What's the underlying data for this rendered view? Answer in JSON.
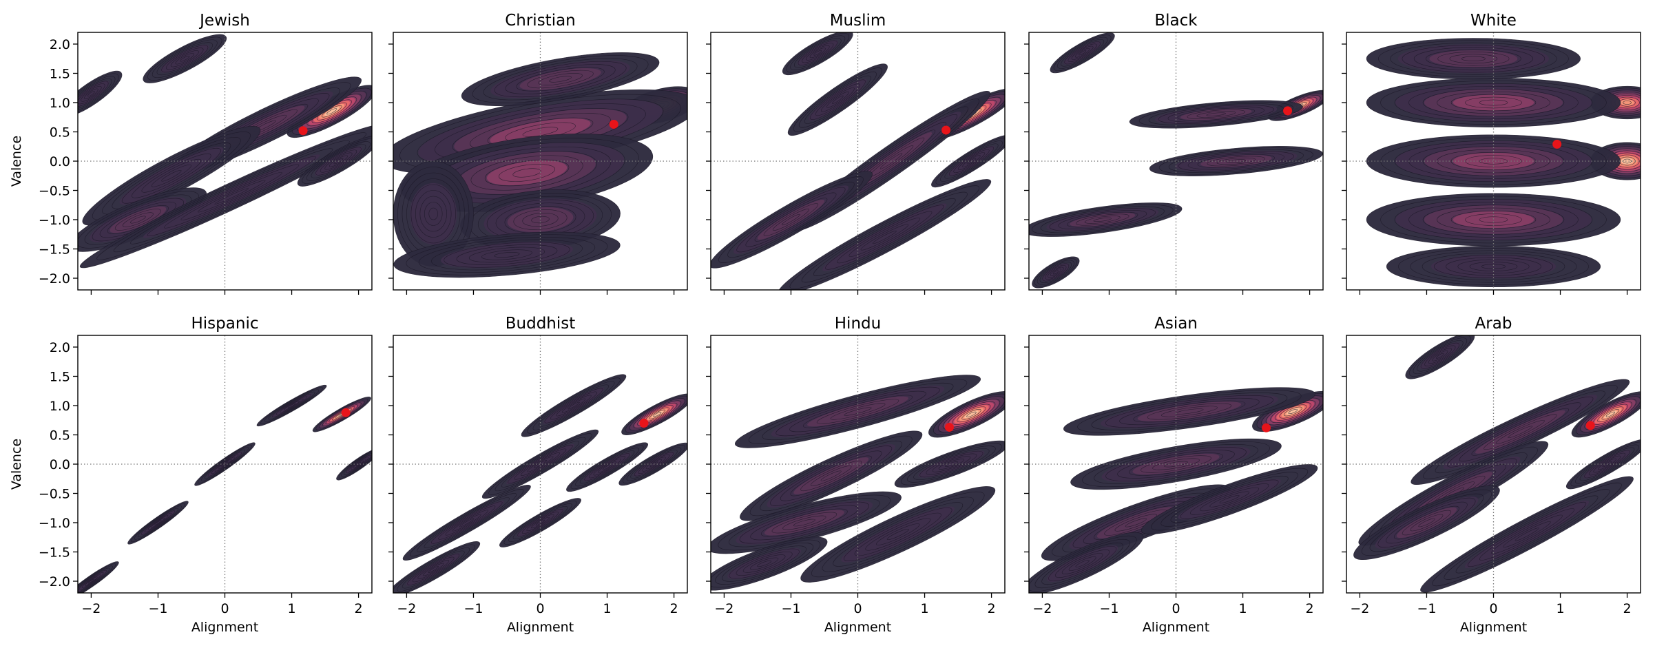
{
  "figure": {
    "ylabel": "Valence",
    "xlabel": "Alignment"
  },
  "chart_data": {
    "type": "kde-contour-grid",
    "rows": 2,
    "cols": 5,
    "xlim": [
      -2.2,
      2.2
    ],
    "ylim": [
      -2.2,
      2.2
    ],
    "xticks": [
      -2,
      -1,
      0,
      1,
      2
    ],
    "yticks": [
      -2.0,
      -1.5,
      -1.0,
      -0.5,
      0.0,
      0.5,
      1.0,
      1.5,
      2.0
    ],
    "ytick_labels": [
      "−2.0",
      "−1.5",
      "−1.0",
      "−0.5",
      "0.0",
      "0.5",
      "1.0",
      "1.5",
      "2.0"
    ],
    "xtick_labels": [
      "−2",
      "−1",
      "0",
      "1",
      "2"
    ],
    "reference_lines": {
      "x": 0,
      "y": 0,
      "style": "dotted"
    },
    "colors": {
      "levels": [
        "#2d2a3e",
        "#3e2f4b",
        "#5a3557",
        "#8b3e66",
        "#c2486b",
        "#ea6a6a",
        "#f5997a",
        "#fbc3a0"
      ],
      "contour_line": "#1a1726",
      "mean_marker": "#e8141a",
      "ref_line": "#777777"
    },
    "grid": false,
    "panels": [
      {
        "title": "Jewish",
        "mean": [
          1.17,
          0.52
        ],
        "peak": [
          2.0,
          1.0
        ],
        "blobs": [
          {
            "x": 1.6,
            "y": 0.85,
            "a": 0.75,
            "b": 0.22,
            "r": 28,
            "w": 1.0
          },
          {
            "x": 0.6,
            "y": 0.6,
            "a": 1.6,
            "b": 0.28,
            "r": 26,
            "w": 0.35
          },
          {
            "x": -0.8,
            "y": -0.25,
            "a": 1.5,
            "b": 0.3,
            "r": 28,
            "w": 0.3
          },
          {
            "x": -1.3,
            "y": -1.0,
            "a": 1.1,
            "b": 0.3,
            "r": 22,
            "w": 0.35
          },
          {
            "x": 0.1,
            "y": -0.6,
            "a": 2.5,
            "b": 0.22,
            "r": 25,
            "w": 0.28
          },
          {
            "x": -0.6,
            "y": 1.75,
            "a": 0.7,
            "b": 0.2,
            "r": 28,
            "w": 0.3
          },
          {
            "x": -2.0,
            "y": 1.15,
            "a": 0.55,
            "b": 0.18,
            "r": 35,
            "w": 0.3
          },
          {
            "x": 1.7,
            "y": 0.0,
            "a": 0.7,
            "b": 0.18,
            "r": 30,
            "w": 0.25
          }
        ]
      },
      {
        "title": "Christian",
        "mean": [
          1.1,
          0.63
        ],
        "peak": [
          2.05,
          1.0
        ],
        "blobs": [
          {
            "x": 1.8,
            "y": 0.95,
            "a": 0.6,
            "b": 0.28,
            "r": 15,
            "w": 1.0
          },
          {
            "x": 0.0,
            "y": 0.5,
            "a": 2.4,
            "b": 0.55,
            "r": 10,
            "w": 0.45
          },
          {
            "x": -0.2,
            "y": -0.2,
            "a": 1.9,
            "b": 0.6,
            "r": 8,
            "w": 0.45
          },
          {
            "x": 0.0,
            "y": -1.0,
            "a": 1.2,
            "b": 0.5,
            "r": 5,
            "w": 0.35
          },
          {
            "x": -1.6,
            "y": -0.9,
            "a": 0.6,
            "b": 0.9,
            "r": 0,
            "w": 0.3
          },
          {
            "x": 0.3,
            "y": 1.4,
            "a": 1.5,
            "b": 0.35,
            "r": 10,
            "w": 0.35
          },
          {
            "x": -0.5,
            "y": -1.6,
            "a": 1.7,
            "b": 0.35,
            "r": 5,
            "w": 0.3
          }
        ]
      },
      {
        "title": "Muslim",
        "mean": [
          1.32,
          0.53
        ],
        "peak": [
          2.0,
          1.0
        ],
        "blobs": [
          {
            "x": 1.7,
            "y": 0.8,
            "a": 0.75,
            "b": 0.2,
            "r": 28,
            "w": 1.0
          },
          {
            "x": 0.5,
            "y": 0.0,
            "a": 1.8,
            "b": 0.25,
            "r": 35,
            "w": 0.32
          },
          {
            "x": -1.0,
            "y": -1.0,
            "a": 1.4,
            "b": 0.25,
            "r": 30,
            "w": 0.35
          },
          {
            "x": -0.3,
            "y": 1.05,
            "a": 0.9,
            "b": 0.2,
            "r": 35,
            "w": 0.3
          },
          {
            "x": -0.6,
            "y": 1.85,
            "a": 0.6,
            "b": 0.18,
            "r": 30,
            "w": 0.3
          },
          {
            "x": 0.4,
            "y": -1.3,
            "a": 1.8,
            "b": 0.25,
            "r": 28,
            "w": 0.3
          },
          {
            "x": 1.7,
            "y": 0.0,
            "a": 0.7,
            "b": 0.16,
            "r": 32,
            "w": 0.25
          }
        ]
      },
      {
        "title": "Black",
        "mean": [
          1.67,
          0.86
        ],
        "peak": [
          2.0,
          1.0
        ],
        "blobs": [
          {
            "x": 1.85,
            "y": 0.95,
            "a": 0.5,
            "b": 0.16,
            "r": 22,
            "w": 1.0
          },
          {
            "x": 0.6,
            "y": 0.8,
            "a": 1.3,
            "b": 0.2,
            "r": 5,
            "w": 0.35
          },
          {
            "x": 0.9,
            "y": 0.0,
            "a": 1.3,
            "b": 0.22,
            "r": 5,
            "w": 0.35
          },
          {
            "x": -1.1,
            "y": -1.0,
            "a": 1.2,
            "b": 0.22,
            "r": 8,
            "w": 0.35
          },
          {
            "x": -1.4,
            "y": 1.85,
            "a": 0.55,
            "b": 0.16,
            "r": 30,
            "w": 0.3
          },
          {
            "x": -1.8,
            "y": -1.9,
            "a": 0.4,
            "b": 0.16,
            "r": 30,
            "w": 0.3
          }
        ]
      },
      {
        "title": "White",
        "mean": [
          0.95,
          0.29
        ],
        "peak": [
          1.95,
          0.0
        ],
        "blobs": [
          {
            "x": 2.0,
            "y": 1.0,
            "a": 0.55,
            "b": 0.28,
            "r": 0,
            "w": 0.9
          },
          {
            "x": 2.0,
            "y": 0.0,
            "a": 0.55,
            "b": 0.32,
            "r": 0,
            "w": 1.0
          },
          {
            "x": 0.0,
            "y": 1.0,
            "a": 1.9,
            "b": 0.42,
            "r": 0,
            "w": 0.5
          },
          {
            "x": 0.0,
            "y": 0.0,
            "a": 1.9,
            "b": 0.45,
            "r": 0,
            "w": 0.5
          },
          {
            "x": 0.0,
            "y": -1.0,
            "a": 1.9,
            "b": 0.45,
            "r": 0,
            "w": 0.55
          },
          {
            "x": -0.3,
            "y": 1.75,
            "a": 1.6,
            "b": 0.35,
            "r": 0,
            "w": 0.35
          },
          {
            "x": 0.0,
            "y": -1.8,
            "a": 1.6,
            "b": 0.35,
            "r": 0,
            "w": 0.3
          }
        ]
      },
      {
        "title": "Hispanic",
        "mean": [
          1.81,
          0.88
        ],
        "peak": [
          2.0,
          1.0
        ],
        "blobs": [
          {
            "x": 1.75,
            "y": 0.85,
            "a": 0.5,
            "b": 0.1,
            "r": 30,
            "w": 1.0
          },
          {
            "x": 1.0,
            "y": 1.0,
            "a": 0.6,
            "b": 0.09,
            "r": 30,
            "w": 0.3
          },
          {
            "x": 0.0,
            "y": 0.0,
            "a": 0.55,
            "b": 0.09,
            "r": 35,
            "w": 0.3
          },
          {
            "x": -1.0,
            "y": -1.0,
            "a": 0.55,
            "b": 0.09,
            "r": 35,
            "w": 0.3
          },
          {
            "x": -2.0,
            "y": -2.0,
            "a": 0.5,
            "b": 0.09,
            "r": 35,
            "w": 0.3
          },
          {
            "x": 2.0,
            "y": 0.0,
            "a": 0.4,
            "b": 0.09,
            "r": 35,
            "w": 0.25
          }
        ]
      },
      {
        "title": "Buddhist",
        "mean": [
          1.55,
          0.7
        ],
        "peak": [
          2.0,
          1.0
        ],
        "blobs": [
          {
            "x": 1.75,
            "y": 0.85,
            "a": 0.6,
            "b": 0.16,
            "r": 28,
            "w": 1.0
          },
          {
            "x": 0.5,
            "y": 1.0,
            "a": 0.9,
            "b": 0.16,
            "r": 30,
            "w": 0.3
          },
          {
            "x": 0.0,
            "y": 0.0,
            "a": 1.0,
            "b": 0.16,
            "r": 30,
            "w": 0.3
          },
          {
            "x": -1.1,
            "y": -1.0,
            "a": 1.1,
            "b": 0.16,
            "r": 30,
            "w": 0.3
          },
          {
            "x": -1.6,
            "y": -1.8,
            "a": 0.8,
            "b": 0.16,
            "r": 30,
            "w": 0.3
          },
          {
            "x": 0.0,
            "y": -1.0,
            "a": 0.7,
            "b": 0.14,
            "r": 30,
            "w": 0.3
          },
          {
            "x": 1.0,
            "y": -0.05,
            "a": 0.7,
            "b": 0.14,
            "r": 30,
            "w": 0.3
          },
          {
            "x": 1.7,
            "y": 0.0,
            "a": 0.6,
            "b": 0.14,
            "r": 30,
            "w": 0.25
          }
        ]
      },
      {
        "title": "Hindu",
        "mean": [
          1.37,
          0.63
        ],
        "peak": [
          2.0,
          1.0
        ],
        "blobs": [
          {
            "x": 1.7,
            "y": 0.85,
            "a": 0.7,
            "b": 0.22,
            "r": 25,
            "w": 1.0
          },
          {
            "x": 0.0,
            "y": 0.9,
            "a": 1.9,
            "b": 0.28,
            "r": 15,
            "w": 0.35
          },
          {
            "x": -0.4,
            "y": -0.2,
            "a": 1.5,
            "b": 0.28,
            "r": 25,
            "w": 0.35
          },
          {
            "x": -0.8,
            "y": -1.0,
            "a": 1.5,
            "b": 0.3,
            "r": 15,
            "w": 0.35
          },
          {
            "x": 0.6,
            "y": -1.2,
            "a": 1.6,
            "b": 0.3,
            "r": 25,
            "w": 0.3
          },
          {
            "x": 1.4,
            "y": 0.0,
            "a": 0.9,
            "b": 0.2,
            "r": 20,
            "w": 0.3
          },
          {
            "x": -1.4,
            "y": -1.7,
            "a": 1.0,
            "b": 0.25,
            "r": 20,
            "w": 0.3
          }
        ]
      },
      {
        "title": "Asian",
        "mean": [
          1.35,
          0.62
        ],
        "peak": [
          2.0,
          1.0
        ],
        "blobs": [
          {
            "x": 1.75,
            "y": 0.9,
            "a": 0.65,
            "b": 0.22,
            "r": 22,
            "w": 1.0
          },
          {
            "x": 0.2,
            "y": 0.9,
            "a": 1.9,
            "b": 0.28,
            "r": 8,
            "w": 0.35
          },
          {
            "x": 0.0,
            "y": 0.0,
            "a": 1.6,
            "b": 0.3,
            "r": 10,
            "w": 0.4
          },
          {
            "x": -0.6,
            "y": -1.0,
            "a": 1.5,
            "b": 0.3,
            "r": 20,
            "w": 0.35
          },
          {
            "x": 0.8,
            "y": -0.6,
            "a": 1.4,
            "b": 0.25,
            "r": 20,
            "w": 0.3
          },
          {
            "x": -1.4,
            "y": -1.7,
            "a": 1.0,
            "b": 0.25,
            "r": 25,
            "w": 0.3
          }
        ]
      },
      {
        "title": "Arab",
        "mean": [
          1.45,
          0.66
        ],
        "peak": [
          2.0,
          1.0
        ],
        "blobs": [
          {
            "x": 1.75,
            "y": 0.85,
            "a": 0.65,
            "b": 0.2,
            "r": 28,
            "w": 1.0
          },
          {
            "x": 0.4,
            "y": 0.55,
            "a": 1.8,
            "b": 0.26,
            "r": 25,
            "w": 0.35
          },
          {
            "x": -0.6,
            "y": -0.5,
            "a": 1.6,
            "b": 0.28,
            "r": 28,
            "w": 0.35
          },
          {
            "x": -1.0,
            "y": -1.0,
            "a": 1.2,
            "b": 0.28,
            "r": 25,
            "w": 0.35
          },
          {
            "x": -0.8,
            "y": 1.85,
            "a": 0.6,
            "b": 0.18,
            "r": 32,
            "w": 0.3
          },
          {
            "x": 0.5,
            "y": -1.2,
            "a": 1.8,
            "b": 0.25,
            "r": 28,
            "w": 0.3
          },
          {
            "x": 1.7,
            "y": 0.0,
            "a": 0.7,
            "b": 0.16,
            "r": 30,
            "w": 0.25
          }
        ]
      }
    ]
  }
}
